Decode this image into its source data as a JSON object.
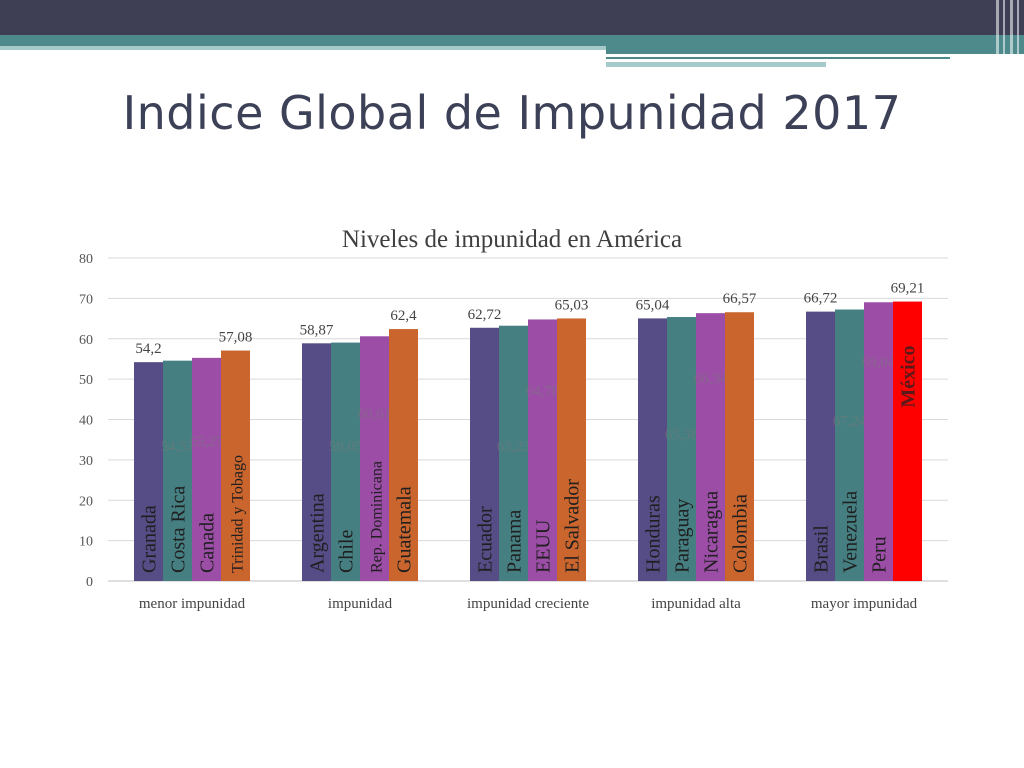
{
  "slide": {
    "title": "Indice Global de Impunidad 2017"
  },
  "colors": {
    "header_bar": "#3e3f54",
    "accent_teal": "#4e8a8b",
    "accent_light": "#a6c9ca",
    "title_text": "#3c4157",
    "label_text": "#444444",
    "grid": "#d9d9d9"
  },
  "chart_data": {
    "type": "bar",
    "title": "Niveles de impunidad en América",
    "ylim": [
      0,
      80
    ],
    "yticks": [
      0,
      10,
      20,
      30,
      40,
      50,
      60,
      70,
      80
    ],
    "grid": true,
    "groups": [
      {
        "category": "menor impunidad",
        "bars": [
          {
            "country": "Granada",
            "value": 54.2,
            "value_label": "54,2",
            "color": "#564c86"
          },
          {
            "country": "Costa Rica",
            "value": 54.57,
            "value_label": "54,57",
            "color": "#467f82"
          },
          {
            "country": "Canada",
            "value": 55.27,
            "value_label": "55,27",
            "color": "#9c4ea7"
          },
          {
            "country": "Trinidad y Tobago",
            "value": 57.08,
            "value_label": "57,08",
            "color": "#c9652d"
          }
        ]
      },
      {
        "category": "impunidad",
        "bars": [
          {
            "country": "Argentina",
            "value": 58.87,
            "value_label": "58,87",
            "color": "#564c86"
          },
          {
            "country": "Chile",
            "value": 59.05,
            "value_label": "59,05",
            "color": "#467f82"
          },
          {
            "country": "Rep. Dominicana",
            "value": 60.61,
            "value_label": "60,61",
            "color": "#9c4ea7"
          },
          {
            "country": "Guatemala",
            "value": 62.4,
            "value_label": "62,4",
            "color": "#c9652d"
          }
        ]
      },
      {
        "category": "impunidad creciente",
        "bars": [
          {
            "country": "Ecuador",
            "value": 62.72,
            "value_label": "62,72",
            "color": "#564c86"
          },
          {
            "country": "Panama",
            "value": 63.23,
            "value_label": "63,23",
            "color": "#467f82"
          },
          {
            "country": "EEUU",
            "value": 64.78,
            "value_label": "64,78",
            "color": "#9c4ea7"
          },
          {
            "country": "El Salvador",
            "value": 65.03,
            "value_label": "65,03",
            "color": "#c9652d"
          }
        ]
      },
      {
        "category": "impunidad alta",
        "bars": [
          {
            "country": "Honduras",
            "value": 65.04,
            "value_label": "65,04",
            "color": "#564c86"
          },
          {
            "country": "Paraguay",
            "value": 65.38,
            "value_label": "65,38",
            "color": "#467f82"
          },
          {
            "country": "Nicaragua",
            "value": 66.34,
            "value_label": "66,34",
            "color": "#9c4ea7"
          },
          {
            "country": "Colombia",
            "value": 66.57,
            "value_label": "66,57",
            "color": "#c9652d"
          }
        ]
      },
      {
        "category": "mayor impunidad",
        "bars": [
          {
            "country": "Brasil",
            "value": 66.72,
            "value_label": "66,72",
            "color": "#564c86"
          },
          {
            "country": "Venezuela",
            "value": 67.24,
            "value_label": "67,24",
            "color": "#467f82"
          },
          {
            "country": "Peru",
            "value": 69.04,
            "value_label": "69,04",
            "color": "#9c4ea7"
          },
          {
            "country": "México",
            "value": 69.21,
            "value_label": "69,21",
            "color": "#ff0000",
            "highlight": true
          }
        ]
      }
    ]
  }
}
